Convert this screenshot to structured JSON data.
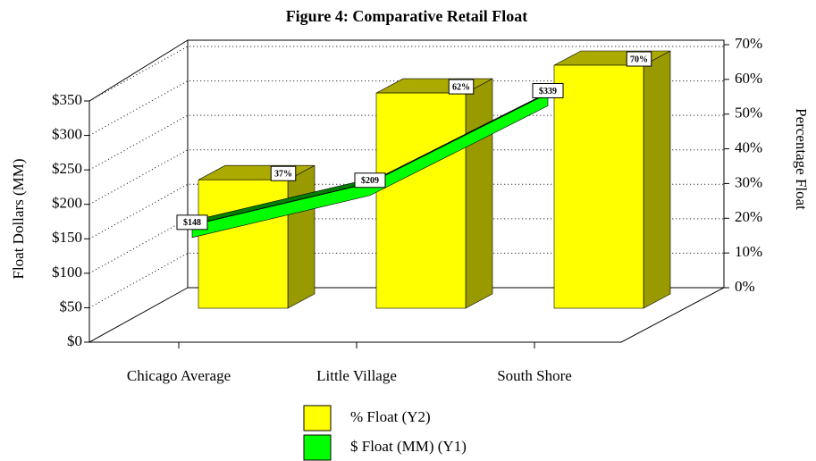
{
  "chart_data": {
    "type": "bar",
    "title": "Figure 4: Comparative Retail Float",
    "categories": [
      "Chicago Average",
      "Little Village",
      "South Shore"
    ],
    "series": [
      {
        "name": "% Float (Y2)",
        "type": "bar",
        "axis": "y2",
        "color": "#ffff00",
        "values": [
          37,
          62,
          70
        ],
        "value_labels": [
          "37%",
          "62%",
          "70%"
        ]
      },
      {
        "name": "$ Float (MM) (Y1)",
        "type": "line",
        "color": "#00ff00",
        "values": [
          148,
          209,
          339
        ],
        "value_labels": [
          "$148",
          "$209",
          "$339"
        ]
      }
    ],
    "y_label": "Float Dollars (MM)",
    "y2_label": "Percentage Float",
    "ylim": [
      0,
      350
    ],
    "yticks": [
      {
        "value": 0,
        "label": "$0"
      },
      {
        "value": 50,
        "label": "$50"
      },
      {
        "value": 100,
        "label": "$100"
      },
      {
        "value": 150,
        "label": "$150"
      },
      {
        "value": 200,
        "label": "$200"
      },
      {
        "value": 250,
        "label": "$250"
      },
      {
        "value": 300,
        "label": "$300"
      },
      {
        "value": 350,
        "label": "$350"
      }
    ],
    "y2lim": [
      0,
      70
    ],
    "y2ticks": [
      {
        "value": 0,
        "label": "0%"
      },
      {
        "value": 10,
        "label": "10%"
      },
      {
        "value": 20,
        "label": "20%"
      },
      {
        "value": 30,
        "label": "30%"
      },
      {
        "value": 40,
        "label": "40%"
      },
      {
        "value": 50,
        "label": "50%"
      },
      {
        "value": 60,
        "label": "60%"
      },
      {
        "value": 70,
        "label": "70%"
      }
    ],
    "grid": true
  }
}
